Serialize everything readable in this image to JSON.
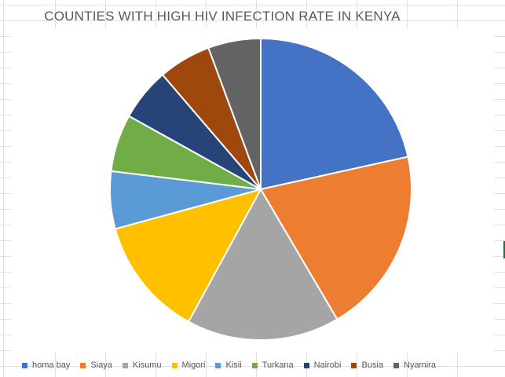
{
  "chart_data": {
    "type": "pie",
    "title": "COUNTIES WITH HIGH HIV INFECTION RATE IN KENYA",
    "categories": [
      "homa bay",
      "Siaya",
      "Kisumu",
      "Migori",
      "Kisii",
      "Turkana",
      "Nairobi",
      "Busia",
      "Nyamira"
    ],
    "values": [
      21,
      19.5,
      16,
      12.5,
      6,
      6,
      5.5,
      5.5,
      5.5
    ],
    "colors": [
      "#4472C4",
      "#ED7D31",
      "#A5A5A5",
      "#FFC000",
      "#5B9BD5",
      "#70AD47",
      "#264478",
      "#9E480E",
      "#636363"
    ],
    "legend_position": "bottom",
    "grid": false
  }
}
